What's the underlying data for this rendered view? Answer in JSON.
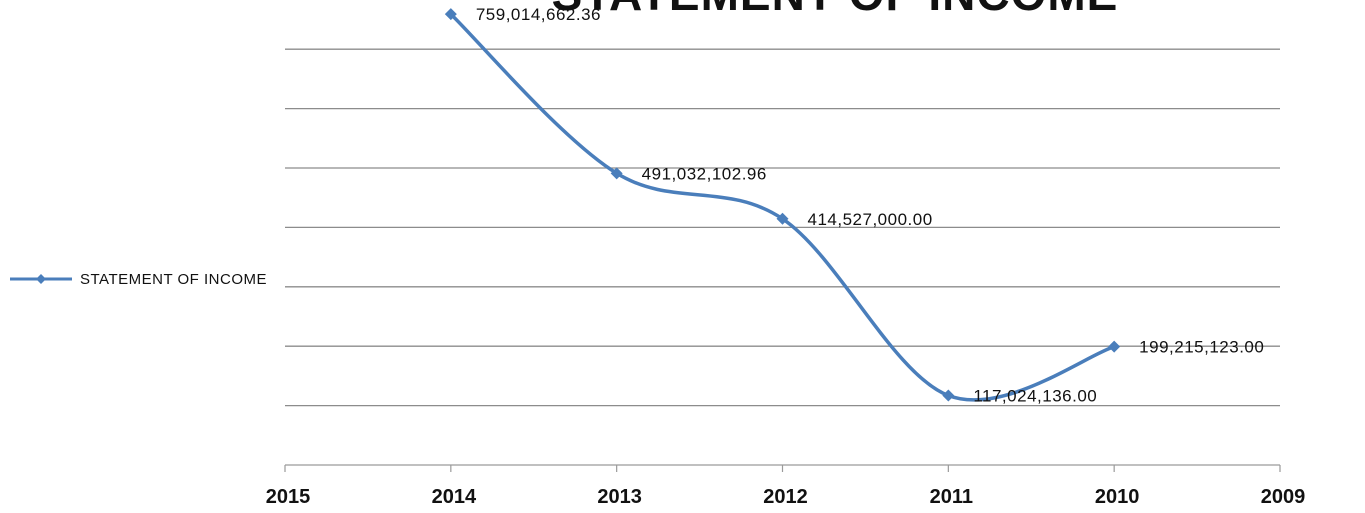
{
  "chart_data": {
    "type": "line",
    "title": "STATEMENT OF INCOME",
    "categories": [
      "2015",
      "2014",
      "2013",
      "2012",
      "2011",
      "2010",
      "2009"
    ],
    "series": [
      {
        "name": "STATEMENT OF INCOME",
        "values": [
          null,
          759014662.36,
          491032102.96,
          414527000.0,
          117024136.0,
          199215123.0,
          null
        ],
        "labels": [
          null,
          "759,014,662.36",
          "491,032,102.96",
          "414,527,000.00",
          "117,024,136.00",
          "199,215,123.00",
          null
        ]
      }
    ],
    "ylim": [
      0,
      800000000
    ],
    "yticks_visible": false,
    "grid": true,
    "smooth": true,
    "legend_position": "left",
    "colors": {
      "series": "#4a7ebb",
      "grid": "#8c8c8c",
      "axis": "#9a9a9a",
      "text": "#111111"
    }
  }
}
